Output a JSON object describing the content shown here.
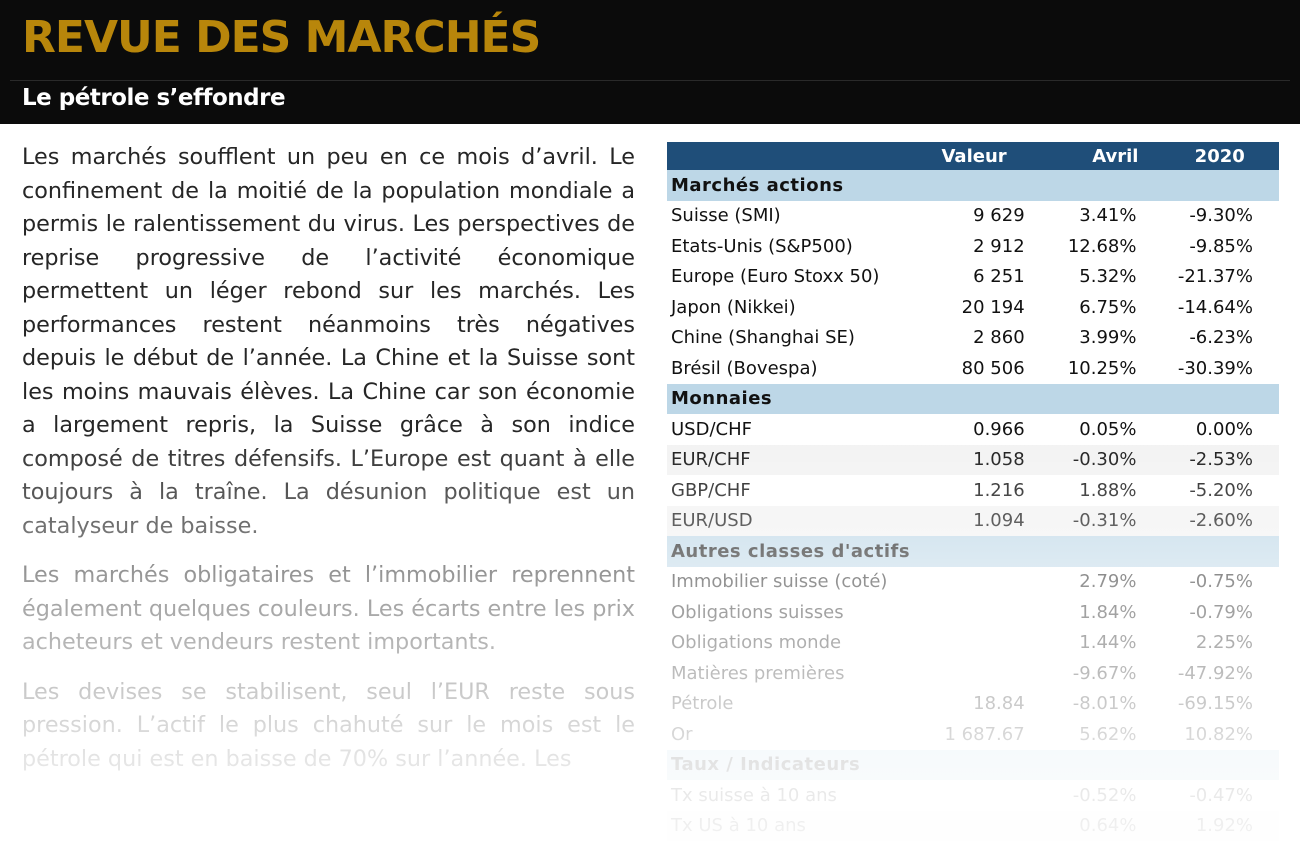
{
  "header": {
    "title": "REVUE DES MARCHÉS",
    "subtitle": "Le pétrole s’effondre"
  },
  "article": {
    "paragraphs": [
      "Les marchés soufflent un peu en ce mois d’avril. Le confinement de la moitié de la population mondiale a permis le ralentissement du virus. Les perspectives de reprise progressive de l’activité économique permettent un léger rebond sur les marchés. Les performances restent néanmoins très négatives depuis le début de l’année. La Chine et la Suisse sont les moins mauvais élèves. La Chine car son économie a largement repris, la Suisse grâce à son indice composé de titres défensifs. L’Europe est quant à elle toujours à la traîne. La désunion politique est un catalyseur de baisse.",
      "Les marchés obligataires et l’immobilier reprennent également quelques couleurs. Les écarts entre les prix acheteurs et vendeurs restent importants.",
      "Les devises se stabilisent, seul l’EUR reste sous pression. L’actif le plus chahuté sur le mois est le pétrole qui est en baisse de 70% sur l’année. Les"
    ]
  },
  "table": {
    "headers": {
      "valeur": "Valeur",
      "avril": "Avril",
      "year": "2020"
    },
    "sections": [
      {
        "title": "Marchés actions",
        "rows": [
          {
            "label": "Suisse (SMI)",
            "valeur": "9 629",
            "avril": "3.41%",
            "year": "-9.30%"
          },
          {
            "label": "Etats-Unis (S&P500)",
            "valeur": "2 912",
            "avril": "12.68%",
            "year": "-9.85%"
          },
          {
            "label": "Europe (Euro Stoxx 50)",
            "valeur": "6 251",
            "avril": "5.32%",
            "year": "-21.37%"
          },
          {
            "label": "Japon (Nikkei)",
            "valeur": "20 194",
            "avril": "6.75%",
            "year": "-14.64%"
          },
          {
            "label": "Chine (Shanghai SE)",
            "valeur": "2 860",
            "avril": "3.99%",
            "year": "-6.23%"
          },
          {
            "label": "Brésil (Bovespa)",
            "valeur": "80 506",
            "avril": "10.25%",
            "year": "-30.39%"
          }
        ]
      },
      {
        "title": "Monnaies",
        "rows": [
          {
            "label": "USD/CHF",
            "valeur": "0.966",
            "avril": "0.05%",
            "year": "0.00%"
          },
          {
            "label": "EUR/CHF",
            "valeur": "1.058",
            "avril": "-0.30%",
            "year": "-2.53%"
          },
          {
            "label": "GBP/CHF",
            "valeur": "1.216",
            "avril": "1.88%",
            "year": "-5.20%"
          },
          {
            "label": "EUR/USD",
            "valeur": "1.094",
            "avril": "-0.31%",
            "year": "-2.60%"
          }
        ]
      },
      {
        "title": "Autres classes d'actifs",
        "rows": [
          {
            "label": "Immobilier suisse (coté)",
            "valeur": "",
            "avril": "2.79%",
            "year": "-0.75%"
          },
          {
            "label": "Obligations suisses",
            "valeur": "",
            "avril": "1.84%",
            "year": "-0.79%"
          },
          {
            "label": "Obligations monde",
            "valeur": "",
            "avril": "1.44%",
            "year": "2.25%"
          },
          {
            "label": "Matières premières",
            "valeur": "",
            "avril": "-9.67%",
            "year": "-47.92%"
          },
          {
            "label": "Pétrole",
            "valeur": "18.84",
            "avril": "-8.01%",
            "year": "-69.15%"
          },
          {
            "label": "Or",
            "valeur": "1 687.67",
            "avril": "5.62%",
            "year": "10.82%"
          }
        ]
      },
      {
        "title": "Taux / Indicateurs",
        "rows": [
          {
            "label": "Tx suisse à 10 ans",
            "valeur": "",
            "avril": "-0.52%",
            "year": "-0.47%"
          },
          {
            "label": "Tx US à 10 ans",
            "valeur": "",
            "avril": "0.64%",
            "year": "1.92%"
          }
        ]
      }
    ]
  }
}
